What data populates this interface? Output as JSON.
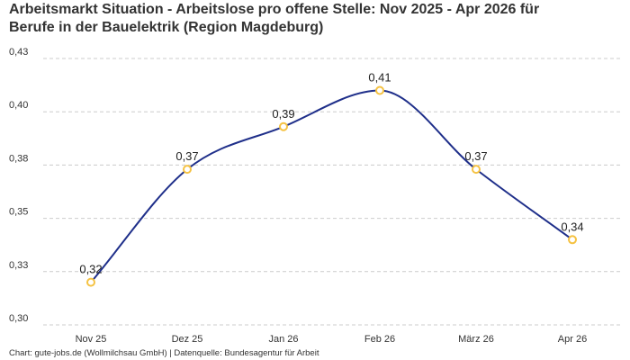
{
  "chart_data": {
    "type": "line",
    "title_line1": "Arbeitsmarkt Situation - Arbeitslose pro offene Stelle: Nov 2025 - Apr 2026 für",
    "title_line2": "Berufe in der Bauelektrik (Region Magdeburg)",
    "categories": [
      "Nov 25",
      "Dez 25",
      "Jan 26",
      "Feb 26",
      "März 26",
      "Apr 26"
    ],
    "values": [
      0.32,
      0.373,
      0.393,
      0.41,
      0.373,
      0.34
    ],
    "data_labels": [
      "0,32",
      "0,37",
      "0,39",
      "0,41",
      "0,37",
      "0,34"
    ],
    "y_ticks": [
      0.3,
      0.325,
      0.35,
      0.375,
      0.4,
      0.425
    ],
    "y_tick_labels": [
      "0,30",
      "0,33",
      "0,35",
      "0,38",
      "0,40",
      "0,43"
    ],
    "ylim": [
      0.3,
      0.425
    ],
    "grid": true,
    "line_color": "#1f2f8a",
    "marker_color": "#f5c242"
  },
  "footer": {
    "source": "Chart: gute-jobs.de (Wollmilchsau GmbH) | Datenquelle: Bundesagentur für Arbeit"
  }
}
